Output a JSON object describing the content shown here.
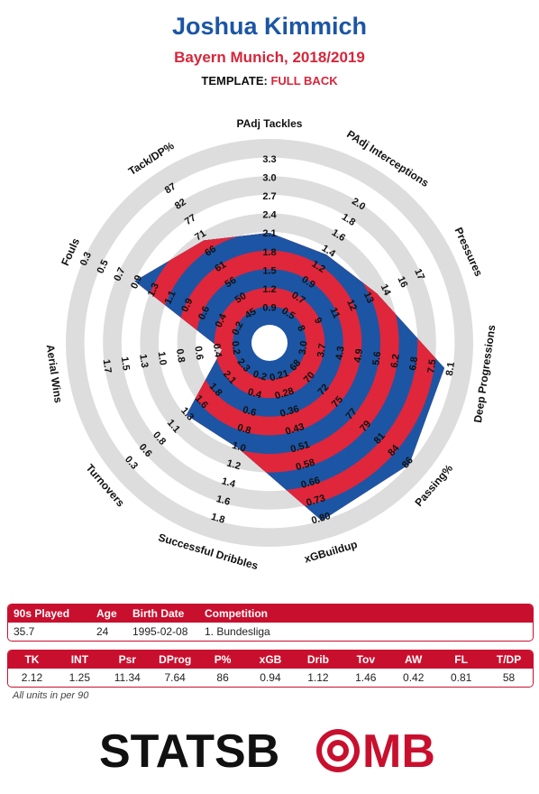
{
  "header": {
    "player": "Joshua Kimmich",
    "team_season": "Bayern Munich, 2018/2019",
    "template_label": "TEMPLATE:",
    "template_value": "FULL BACK"
  },
  "chart_data": {
    "type": "radar",
    "metrics": [
      {
        "label": "PAdj Tackles",
        "value": 2.12,
        "ticks": [
          "0.9",
          "1.2",
          "1.5",
          "1.8",
          "2.1",
          "2.4",
          "2.7",
          "3.0",
          "3.3"
        ]
      },
      {
        "label": "PAdj Interceptions",
        "value": 1.25,
        "ticks": [
          "0.5",
          "0.7",
          "0.9",
          "1.2",
          "1.4",
          "1.6",
          "1.8",
          "2.0"
        ]
      },
      {
        "label": "Pressures",
        "value": 11.34,
        "ticks": [
          "8",
          "9",
          "11",
          "12",
          "13",
          "14",
          "16",
          "17"
        ]
      },
      {
        "label": "Deep Progressions",
        "value": 7.64,
        "ticks": [
          "3.0",
          "3.7",
          "4.3",
          "4.9",
          "5.6",
          "6.2",
          "6.8",
          "7.5",
          "8.1"
        ]
      },
      {
        "label": "Passing%",
        "value": 86,
        "ticks": [
          "68",
          "70",
          "72",
          "75",
          "77",
          "79",
          "81",
          "84",
          "86"
        ]
      },
      {
        "label": "xGBuildup",
        "value": 0.94,
        "ticks": [
          "0.21",
          "0.28",
          "0.36",
          "0.43",
          "0.51",
          "0.58",
          "0.66",
          "0.73",
          "0.80"
        ]
      },
      {
        "label": "Successful Dribbles",
        "value": 1.12,
        "ticks": [
          "0.2",
          "0.4",
          "0.6",
          "0.8",
          "1.0",
          "1.2",
          "1.4",
          "1.6",
          "1.8"
        ]
      },
      {
        "label": "Turnovers",
        "value": 1.46,
        "ticks": [
          "2.3",
          "2.1",
          "1.8",
          "1.6",
          "1.3",
          "1.1",
          "0.8",
          "0.6",
          "0.3"
        ]
      },
      {
        "label": "Aerial Wins",
        "value": 0.42,
        "ticks": [
          "0.2",
          "0.4",
          "0.6",
          "0.8",
          "1.0",
          "1.3",
          "1.5",
          "1.7"
        ]
      },
      {
        "label": "Fouls",
        "value": 0.81,
        "ticks": [
          "0.2",
          "0.4",
          "0.6",
          "0.9",
          "1.1",
          "1.3",
          "0.9",
          "0.7",
          "0.5",
          "0.3"
        ]
      },
      {
        "label": "Tack/DP%",
        "value": 58,
        "ticks": [
          "45",
          "50",
          "56",
          "61",
          "66",
          "71",
          "77",
          "82",
          "87"
        ]
      }
    ],
    "polygon_fraction": [
      0.55,
      0.52,
      0.6,
      0.95,
      1.0,
      1.0,
      0.55,
      0.55,
      0.18,
      0.78,
      0.62
    ],
    "colors": {
      "ring_red": "#e0263a",
      "ring_blue": "#1c55a4",
      "track": "#dddddd"
    }
  },
  "info_table": {
    "headers": [
      "90s Played",
      "Age",
      "Birth Date",
      "Competition"
    ],
    "values": [
      "35.7",
      "24",
      "1995-02-08",
      "1. Bundesliga"
    ]
  },
  "stats_table": {
    "headers": [
      "TK",
      "INT",
      "Psr",
      "DProg",
      "P%",
      "xGB",
      "Drib",
      "Tov",
      "AW",
      "FL",
      "T/DP"
    ],
    "values": [
      "2.12",
      "1.25",
      "11.34",
      "7.64",
      "86",
      "0.94",
      "1.12",
      "1.46",
      "0.42",
      "0.81",
      "58"
    ]
  },
  "units_note": "All units in per 90",
  "logo": {
    "left": "STATSB",
    "right": "MB",
    "o": "O"
  }
}
